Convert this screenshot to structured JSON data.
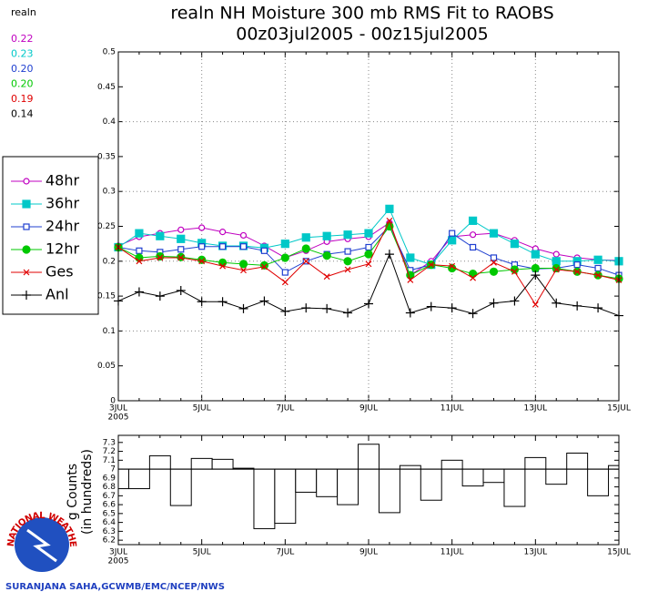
{
  "chart_data": [
    {
      "type": "line",
      "title": "realn NH Moisture 300 mb RMS Fit to RAOBS",
      "subtitle": "00z03jul2005 - 00z15jul2005",
      "stats_label": "realn",
      "categories": [
        "3JUL",
        null,
        null,
        null,
        "5JUL",
        null,
        null,
        null,
        "7JUL",
        null,
        null,
        null,
        "9JUL",
        null,
        null,
        null,
        "11JUL",
        null,
        null,
        null,
        "13JUL",
        null,
        null,
        null,
        "15JUL"
      ],
      "year_label": "2005",
      "ylim": [
        0,
        0.5
      ],
      "yticks": [
        0,
        0.05,
        0.1,
        0.15,
        0.2,
        0.25,
        0.3,
        0.35,
        0.4,
        0.45,
        0.5
      ],
      "grid": true,
      "legend": "left",
      "series": [
        {
          "name": "48hr",
          "color": "#c000c0",
          "marker": "circle-open",
          "stat": "0.22",
          "values": [
            0.222,
            0.235,
            0.24,
            0.245,
            0.248,
            0.242,
            0.237,
            0.222,
            0.205,
            0.215,
            0.228,
            0.232,
            0.235,
            0.255,
            0.18,
            0.2,
            0.235,
            0.238,
            0.24,
            0.23,
            0.218,
            0.21,
            0.205,
            0.202,
            0.201
          ]
        },
        {
          "name": "36hr",
          "color": "#00c8c8",
          "marker": "square-filled",
          "stat": "0.23",
          "values": [
            0.22,
            0.24,
            0.236,
            0.232,
            0.226,
            0.222,
            0.222,
            0.219,
            0.225,
            0.234,
            0.236,
            0.238,
            0.24,
            0.275,
            0.205,
            0.195,
            0.23,
            0.258,
            0.24,
            0.225,
            0.21,
            0.2,
            0.2,
            0.202,
            0.2
          ]
        },
        {
          "name": "24hr",
          "color": "#2040d0",
          "marker": "square-open",
          "stat": "0.20",
          "values": [
            0.22,
            0.215,
            0.213,
            0.217,
            0.221,
            0.221,
            0.221,
            0.215,
            0.184,
            0.2,
            0.21,
            0.214,
            0.22,
            0.25,
            0.187,
            0.195,
            0.24,
            0.22,
            0.205,
            0.195,
            0.189,
            0.19,
            0.195,
            0.19,
            0.18
          ]
        },
        {
          "name": "12hr",
          "color": "#00c800",
          "marker": "circle-filled",
          "stat": "0.20",
          "values": [
            0.22,
            0.205,
            0.207,
            0.206,
            0.202,
            0.198,
            0.196,
            0.194,
            0.205,
            0.218,
            0.208,
            0.2,
            0.21,
            0.25,
            0.18,
            0.195,
            0.19,
            0.182,
            0.185,
            0.188,
            0.19,
            0.19,
            0.185,
            0.18,
            0.175
          ]
        },
        {
          "name": "Ges",
          "color": "#e00000",
          "marker": "x",
          "stat": "0.19",
          "values": [
            0.22,
            0.2,
            0.205,
            0.205,
            0.2,
            0.193,
            0.187,
            0.192,
            0.17,
            0.2,
            0.178,
            0.188,
            0.196,
            0.258,
            0.173,
            0.195,
            0.193,
            0.176,
            0.198,
            0.185,
            0.138,
            0.188,
            0.185,
            0.18,
            0.173
          ]
        },
        {
          "name": "Anl",
          "color": "#000000",
          "marker": "plus",
          "stat": "0.14",
          "values": [
            0.143,
            0.156,
            0.15,
            0.158,
            0.142,
            0.142,
            0.132,
            0.143,
            0.128,
            0.133,
            0.132,
            0.126,
            0.139,
            0.21,
            0.126,
            0.135,
            0.133,
            0.125,
            0.14,
            0.143,
            0.18,
            0.14,
            0.136,
            0.133,
            0.122
          ]
        }
      ]
    },
    {
      "type": "step",
      "ylabel": "g Counts",
      "ylabel2": "(in hundreds)",
      "categories": [
        "3JUL",
        null,
        null,
        null,
        "5JUL",
        null,
        null,
        null,
        "7JUL",
        null,
        null,
        null,
        "9JUL",
        null,
        null,
        null,
        "11JUL",
        null,
        null,
        null,
        "13JUL",
        null,
        null,
        null,
        "15JUL"
      ],
      "year_label": "2005",
      "baseline": 7,
      "ylim": [
        6.15,
        7.38
      ],
      "yticks": [
        6.2,
        6.3,
        6.4,
        6.5,
        6.6,
        6.7,
        6.8,
        6.9,
        7,
        7.1,
        7.2,
        7.3
      ],
      "values": [
        6.78,
        6.78,
        7.15,
        6.59,
        7.12,
        7.11,
        7.01,
        6.33,
        6.39,
        6.74,
        6.69,
        6.6,
        7.28,
        6.51,
        7.04,
        6.65,
        7.1,
        6.81,
        6.85,
        6.58,
        7.13,
        6.83,
        7.18,
        6.7,
        7.04
      ]
    }
  ],
  "logo_text": "NATIONAL WEATHER SERVICE",
  "footer": "SURANJANA SAHA,GCWMB/EMC/NCEP/NWS"
}
